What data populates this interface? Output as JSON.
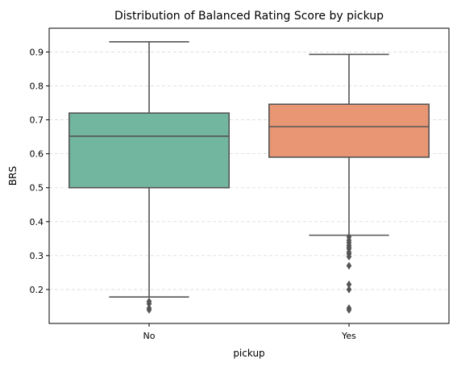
{
  "chart_data": {
    "type": "box",
    "title": "Distribution of Balanced Rating Score by pickup",
    "xlabel": "pickup",
    "ylabel": "BRS",
    "ylim": [
      0.1,
      0.97
    ],
    "yticks": [
      0.2,
      0.3,
      0.4,
      0.5,
      0.6,
      0.7,
      0.8,
      0.9
    ],
    "ytick_labels": [
      "0.2",
      "0.3",
      "0.4",
      "0.5",
      "0.6",
      "0.7",
      "0.8",
      "0.9"
    ],
    "grid": "horizontal dashed",
    "categories": [
      "No",
      "Yes"
    ],
    "boxes": [
      {
        "category": "No",
        "color": "#72b6a0",
        "whisker_low": 0.178,
        "q1": 0.5,
        "median": 0.652,
        "q3": 0.72,
        "whisker_high": 0.93,
        "outliers": [
          0.165,
          0.158,
          0.145,
          0.14
        ]
      },
      {
        "category": "Yes",
        "color": "#e99675",
        "whisker_low": 0.36,
        "q1": 0.59,
        "median": 0.68,
        "q3": 0.746,
        "whisker_high": 0.893,
        "outliers": [
          0.355,
          0.345,
          0.338,
          0.33,
          0.325,
          0.32,
          0.31,
          0.305,
          0.297,
          0.27,
          0.215,
          0.2,
          0.145,
          0.14
        ]
      }
    ]
  }
}
